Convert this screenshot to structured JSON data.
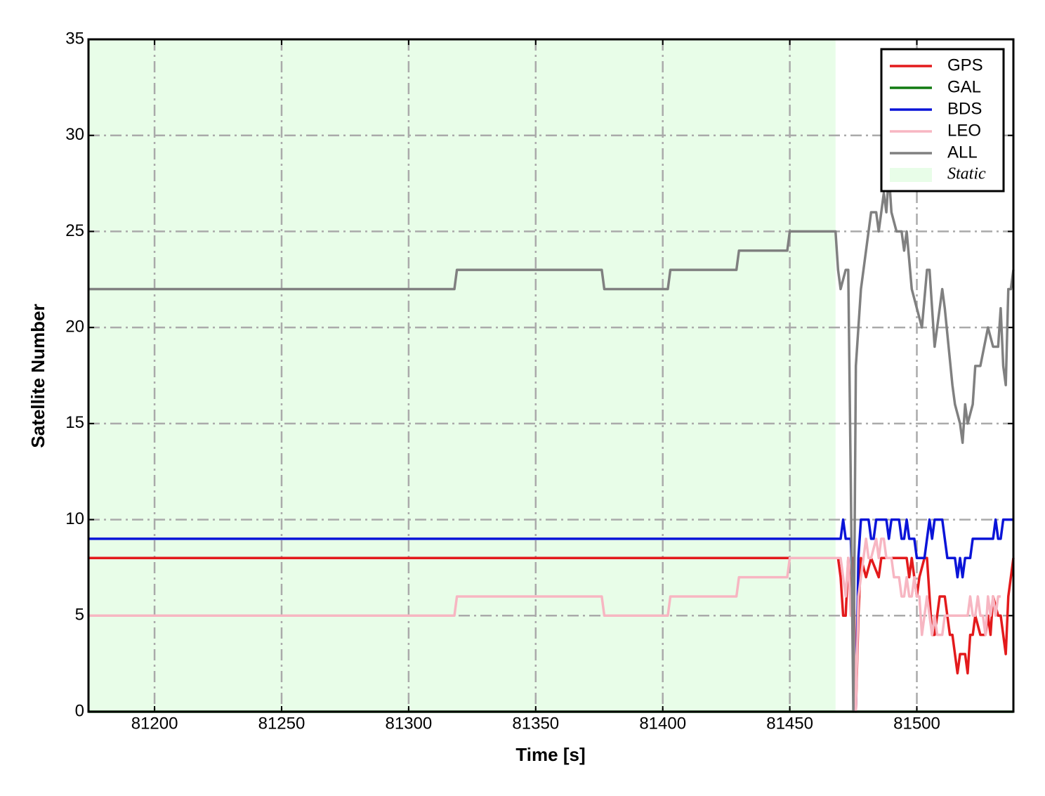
{
  "chart_data": {
    "type": "line",
    "xlabel": "Time [s]",
    "ylabel": "Satellite Number",
    "xlim": [
      81174,
      81538
    ],
    "ylim": [
      0,
      35
    ],
    "xticks": [
      81200,
      81250,
      81300,
      81350,
      81400,
      81450,
      81500
    ],
    "yticks": [
      0,
      5,
      10,
      15,
      20,
      25,
      30,
      35
    ],
    "grid": true,
    "legend": "upper right",
    "shade": {
      "label": "Static",
      "x": [
        81174,
        81468
      ],
      "color": "#e8fde8"
    },
    "series": [
      {
        "name": "GPS",
        "color": "#e31a1c",
        "x": [
          81174,
          81469,
          81470,
          81471,
          81472,
          81473,
          81474,
          81475,
          81476,
          81477,
          81478,
          81480,
          81482,
          81485,
          81486,
          81496,
          81497,
          81498,
          81499,
          81500,
          81501,
          81503,
          81504,
          81505,
          81506,
          81507,
          81508,
          81509,
          81511,
          81512,
          81513,
          81514,
          81516,
          81517,
          81519,
          81520,
          81521,
          81522,
          81523,
          81525,
          81527,
          81528,
          81529,
          81530,
          81532,
          81533,
          81534,
          81535,
          81536,
          81538
        ],
        "values": [
          8,
          8,
          7,
          5,
          5,
          8,
          6,
          8,
          0,
          5,
          8,
          7,
          8,
          7,
          8,
          8,
          7,
          8,
          7,
          6,
          7,
          8,
          8,
          6,
          4,
          4,
          5,
          6,
          6,
          5,
          4,
          4,
          2,
          3,
          3,
          2,
          4,
          4,
          5,
          4,
          4,
          5,
          4,
          6,
          5,
          5,
          4,
          3,
          6,
          8
        ]
      },
      {
        "name": "GAL",
        "color": "#117a11",
        "x": [
          81174,
          81538
        ],
        "values": [
          0,
          0
        ]
      },
      {
        "name": "BDS",
        "color": "#0a14d8",
        "x": [
          81174,
          81470,
          81471,
          81472,
          81474,
          81475,
          81476,
          81477,
          81478,
          81481,
          81482,
          81483,
          81484,
          81488,
          81489,
          81490,
          81493,
          81494,
          81495,
          81496,
          81497,
          81499,
          81500,
          81503,
          81504,
          81505,
          81506,
          81507,
          81510,
          81511,
          81512,
          81515,
          81516,
          81517,
          81518,
          81519,
          81521,
          81522,
          81530,
          81531,
          81532,
          81533,
          81534,
          81538
        ],
        "values": [
          9,
          9,
          10,
          9,
          9,
          5,
          0,
          8,
          10,
          10,
          9,
          9,
          10,
          10,
          9,
          10,
          10,
          9,
          9,
          10,
          9,
          9,
          8,
          8,
          9,
          10,
          9,
          10,
          10,
          9,
          8,
          8,
          7,
          8,
          7,
          8,
          8,
          9,
          9,
          10,
          9,
          9,
          10,
          10
        ]
      },
      {
        "name": "LEO",
        "color": "#f7b6c2",
        "x": [
          81174,
          81318,
          81319,
          81376,
          81377,
          81402,
          81403,
          81429,
          81430,
          81449,
          81450,
          81470,
          81471,
          81472,
          81473,
          81474,
          81475,
          81476,
          81477,
          81478,
          81479,
          81480,
          81481,
          81482,
          81484,
          81485,
          81486,
          81487,
          81488,
          81490,
          81491,
          81493,
          81494,
          81495,
          81496,
          81497,
          81498,
          81499,
          81500,
          81501,
          81502,
          81503,
          81504,
          81505,
          81506,
          81507,
          81508,
          81510,
          81511,
          81520,
          81521,
          81522,
          81523,
          81524,
          81525,
          81526,
          81527,
          81528,
          81529,
          81530,
          81531,
          81532,
          81533
        ],
        "values": [
          5,
          5,
          6,
          6,
          5,
          5,
          6,
          6,
          7,
          7,
          8,
          8,
          7,
          6,
          8,
          5,
          6,
          0,
          6,
          7,
          8,
          9,
          8,
          8,
          9,
          8,
          9,
          9,
          8,
          8,
          7,
          7,
          6,
          6,
          7,
          6,
          6,
          7,
          6,
          6,
          4,
          5,
          6,
          5,
          4,
          5,
          4,
          4,
          5,
          5,
          6,
          5,
          5,
          6,
          5,
          5,
          4,
          6,
          5,
          6,
          5,
          6,
          6
        ]
      },
      {
        "name": "ALL",
        "color": "#808080",
        "x": [
          81174,
          81318,
          81319,
          81376,
          81377,
          81402,
          81403,
          81429,
          81430,
          81449,
          81450,
          81468,
          81469,
          81470,
          81472,
          81473,
          81474,
          81475,
          81476,
          81478,
          81480,
          81482,
          81484,
          81485,
          81486,
          81487,
          81488,
          81489,
          81490,
          81492,
          81494,
          81495,
          81496,
          81498,
          81500,
          81502,
          81504,
          81505,
          81507,
          81510,
          81511,
          81514,
          81515,
          81517,
          81518,
          81519,
          81520,
          81522,
          81523,
          81525,
          81528,
          81530,
          81532,
          81533,
          81534,
          81535,
          81536,
          81537,
          81538
        ],
        "values": [
          22,
          22,
          23,
          23,
          22,
          22,
          23,
          23,
          24,
          24,
          25,
          25,
          23,
          22,
          23,
          23,
          12,
          0,
          18,
          22,
          24,
          26,
          26,
          25,
          26,
          27,
          26,
          28,
          26,
          25,
          25,
          24,
          25,
          22,
          21,
          20,
          23,
          23,
          19,
          22,
          21,
          17,
          16,
          15,
          14,
          16,
          15,
          16,
          18,
          18,
          20,
          19,
          19,
          21,
          18,
          17,
          22,
          22,
          23
        ]
      }
    ]
  }
}
